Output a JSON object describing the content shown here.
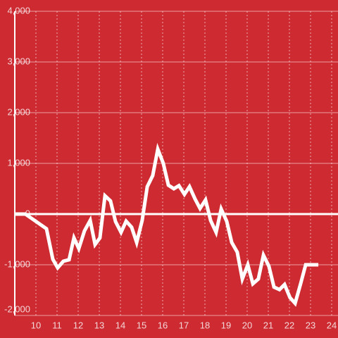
{
  "chart_data": {
    "type": "line",
    "x": [
      9,
      9.5,
      10.5,
      10.8,
      11.03,
      11.3,
      11.57,
      11.8,
      12.03,
      12.3,
      12.57,
      12.8,
      13.03,
      13.27,
      13.53,
      13.77,
      14.03,
      14.27,
      14.53,
      14.77,
      15.03,
      15.27,
      15.53,
      15.77,
      16.03,
      16.27,
      16.53,
      16.77,
      17.03,
      17.27,
      17.53,
      17.77,
      18.03,
      18.27,
      18.53,
      18.77,
      19.03,
      19.27,
      19.53,
      19.77,
      20.03,
      20.27,
      20.53,
      20.77,
      21.03,
      21.27,
      21.53,
      21.77,
      22.03,
      22.27,
      22.53,
      22.77,
      23.03,
      23.37
    ],
    "series": [
      {
        "color": "#ffffff",
        "values": [
          0,
          0,
          -290,
          -890,
          -1060,
          -930,
          -900,
          -470,
          -680,
          -330,
          -125,
          -600,
          -470,
          360,
          260,
          -150,
          -360,
          -140,
          -260,
          -560,
          -125,
          540,
          760,
          1280,
          1000,
          570,
          500,
          560,
          390,
          540,
          300,
          110,
          280,
          -125,
          -360,
          100,
          -140,
          -560,
          -750,
          -1280,
          -1000,
          -1375,
          -1280,
          -810,
          -1030,
          -1440,
          -1490,
          -1390,
          -1650,
          -1760,
          -1375,
          -1000,
          -1000,
          -1000
        ]
      }
    ],
    "xlim": [
      9,
      24.3
    ],
    "xticks": [
      10,
      11,
      12,
      13,
      14,
      15,
      16,
      17,
      18,
      19,
      20,
      21,
      22,
      23,
      24
    ],
    "ylim": [
      -2000,
      4000
    ],
    "yticks": [
      {
        "value": -2000,
        "label": "-2,000"
      },
      {
        "value": -1000,
        "label": "-1,000"
      },
      0,
      {
        "value": 1000,
        "label": "1,000"
      },
      {
        "value": 2000,
        "label": "2,000"
      },
      {
        "value": 3000,
        "label": "3,000"
      },
      {
        "value": 4000,
        "label": "4,000"
      }
    ],
    "grid": true
  }
}
